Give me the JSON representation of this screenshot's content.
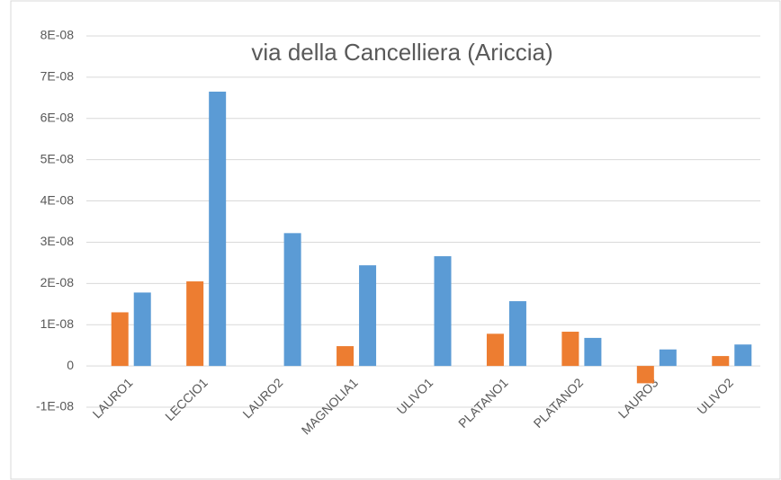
{
  "chart_data": {
    "type": "bar",
    "title": "via della Cancelliera (Ariccia)",
    "categories": [
      "LAURO1",
      "LECCIO1",
      "LAURO2",
      "MAGNOLIA1",
      "ULIVO1",
      "PLATANO1",
      "PLATANO2",
      "LAURO3",
      "ULIVO2"
    ],
    "series": [
      {
        "color": "#ed7d31",
        "values": [
          1.3e-08,
          2.05e-08,
          null,
          4.8e-09,
          null,
          7.8e-09,
          8.3e-09,
          -4.2e-09,
          2.4e-09
        ]
      },
      {
        "color": "#5b9bd5",
        "values": [
          1.78e-08,
          6.65e-08,
          3.22e-08,
          2.44e-08,
          2.66e-08,
          1.57e-08,
          6.8e-09,
          4e-09,
          5.2e-09
        ]
      }
    ],
    "ylim": [
      -1e-08,
      8e-08
    ],
    "yticks": [
      {
        "value": -1e-08,
        "label": "-1E-08"
      },
      0,
      {
        "value": 1e-08,
        "label": "1E-08"
      },
      {
        "value": 2e-08,
        "label": "2E-08"
      },
      {
        "value": 3e-08,
        "label": "3E-08"
      },
      {
        "value": 4e-08,
        "label": "4E-08"
      },
      {
        "value": 5e-08,
        "label": "5E-08"
      },
      {
        "value": 6e-08,
        "label": "6E-08"
      },
      {
        "value": 7e-08,
        "label": "7E-08"
      },
      {
        "value": 8e-08,
        "label": "8E-08"
      }
    ],
    "grid": true
  }
}
